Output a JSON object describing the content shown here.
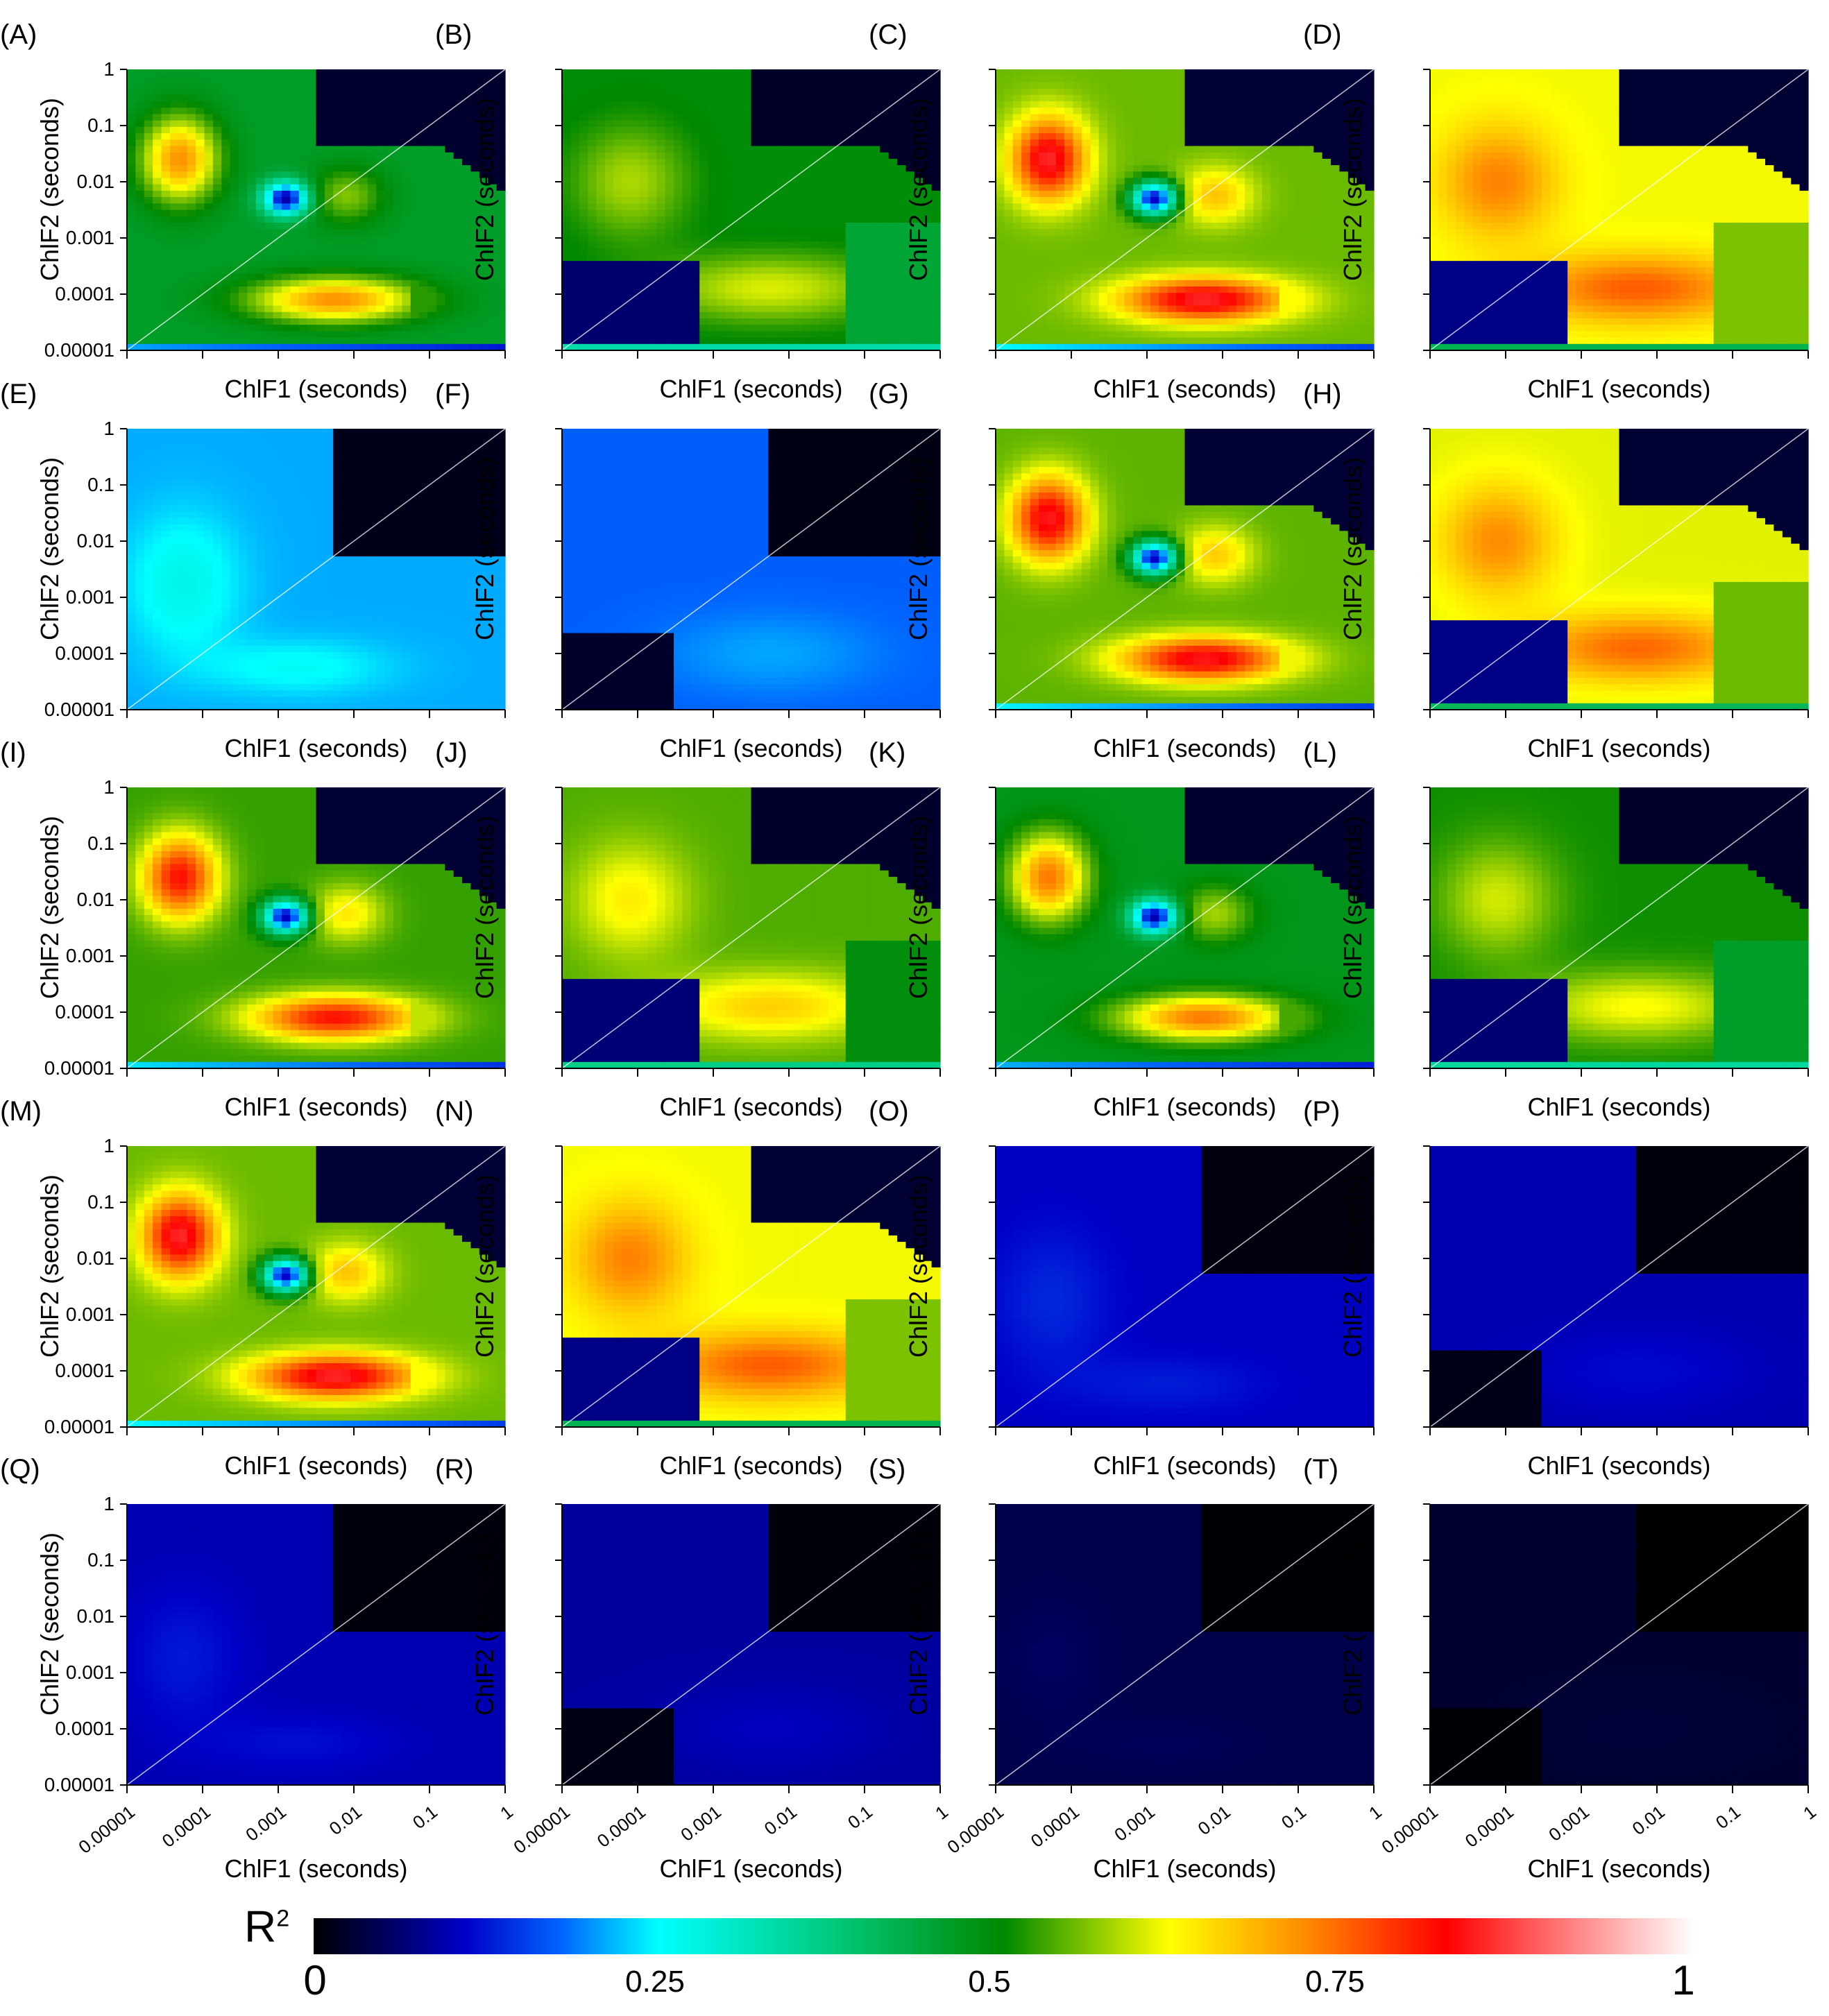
{
  "chart_data": {
    "type": "heatmap",
    "x_axis_label": "ChlF1 (seconds)",
    "y_axis_label": "ChlF2 (seconds)",
    "axis_scale": "log",
    "axis_range": [
      1e-05,
      1
    ],
    "x_tick_labels": [
      "0.00001",
      "0.0001",
      "0.001",
      "0.01",
      "0.1",
      "1"
    ],
    "y_tick_labels": [
      "0.00001",
      "0.0001",
      "0.001",
      "0.01",
      "0.1",
      "1"
    ],
    "colorbar": {
      "title": "R",
      "title_superscript": "2",
      "range": [
        0,
        1
      ],
      "tick_labels": [
        "0",
        "0.25",
        "0.5",
        "0.75",
        "1"
      ],
      "tick_values": [
        0,
        0.25,
        0.5,
        0.75,
        1
      ],
      "colors": [
        "#000000",
        "#0000c8",
        "#0066ff",
        "#00ffff",
        "#00c878",
        "#008800",
        "#ffff00",
        "#ff8800",
        "#ff0000",
        "#ffffff"
      ]
    },
    "panels": [
      {
        "letter": "(A)",
        "pattern": "A",
        "peak": 0.72
      },
      {
        "letter": "(B)",
        "pattern": "B",
        "peak": 0.64
      },
      {
        "letter": "(C)",
        "pattern": "A",
        "peak": 0.86
      },
      {
        "letter": "(D)",
        "pattern": "B",
        "peak": 0.8
      },
      {
        "letter": "(E)",
        "pattern": "C",
        "peak": 0.26
      },
      {
        "letter": "(F)",
        "pattern": "D",
        "peak": 0.2
      },
      {
        "letter": "(G)",
        "pattern": "A",
        "peak": 0.85
      },
      {
        "letter": "(H)",
        "pattern": "B",
        "peak": 0.79
      },
      {
        "letter": "(I)",
        "pattern": "A",
        "peak": 0.82
      },
      {
        "letter": "(J)",
        "pattern": "B",
        "peak": 0.7
      },
      {
        "letter": "(K)",
        "pattern": "A",
        "peak": 0.74
      },
      {
        "letter": "(L)",
        "pattern": "B",
        "peak": 0.66
      },
      {
        "letter": "(M)",
        "pattern": "A",
        "peak": 0.86
      },
      {
        "letter": "(N)",
        "pattern": "B",
        "peak": 0.8
      },
      {
        "letter": "(O)",
        "pattern": "C",
        "peak": 0.13
      },
      {
        "letter": "(P)",
        "pattern": "D",
        "peak": 0.11
      },
      {
        "letter": "(Q)",
        "pattern": "C",
        "peak": 0.12
      },
      {
        "letter": "(R)",
        "pattern": "D",
        "peak": 0.1
      },
      {
        "letter": "(S)",
        "pattern": "C",
        "peak": 0.05
      },
      {
        "letter": "(T)",
        "pattern": "D",
        "peak": 0.03
      }
    ]
  }
}
